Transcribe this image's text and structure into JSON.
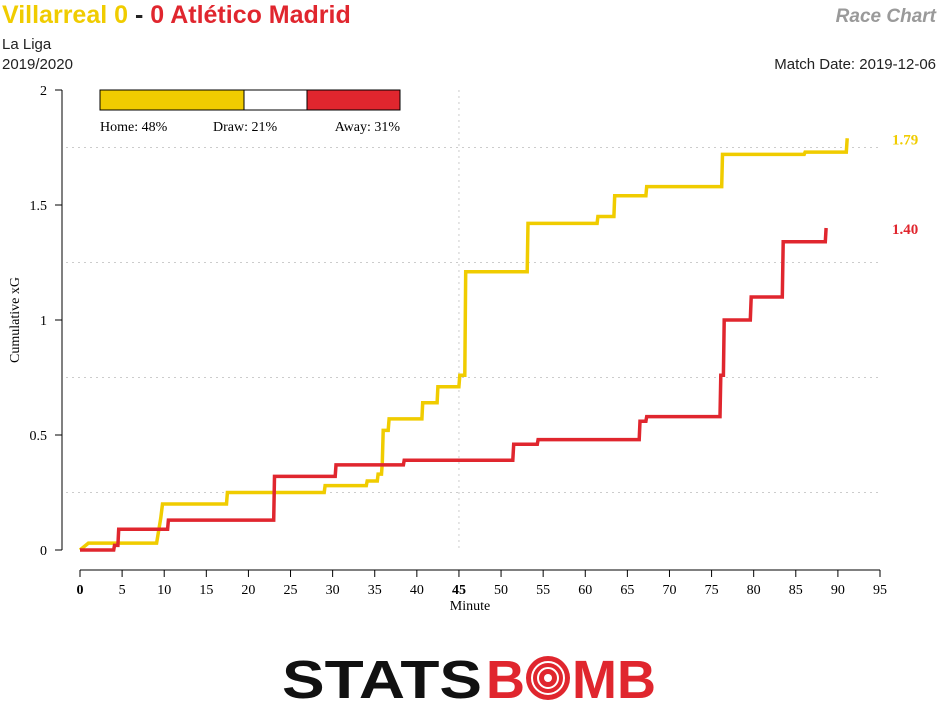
{
  "header": {
    "home_team_score": "Villarreal 0",
    "separator": "-",
    "away_team_score": "0 Atlético Madrid",
    "chart_name": "Race Chart",
    "competition": "La Liga",
    "season": "2019/2020",
    "match_date": "Match Date: 2019-12-06"
  },
  "colors": {
    "home": "#f0cc00",
    "away": "#e0262e",
    "draw": "#ffffff",
    "axis": "#000000",
    "grid": "#cccccc"
  },
  "probabilities": {
    "home": 48,
    "draw": 21,
    "away": 31,
    "home_label": "Home: 48%",
    "draw_label": "Draw: 21%",
    "away_label": "Away: 31%"
  },
  "chart_data": {
    "type": "line",
    "title": "",
    "xlabel": "Minute",
    "ylabel": "Cumulative xG",
    "xlim": [
      0,
      95
    ],
    "ylim": [
      0,
      2
    ],
    "x_ticks": [
      0,
      5,
      10,
      15,
      20,
      25,
      30,
      35,
      40,
      45,
      50,
      55,
      60,
      65,
      70,
      75,
      80,
      85,
      90,
      95
    ],
    "x_tick_labels": [
      "0",
      "5",
      "10",
      "15",
      "20",
      "25",
      "30",
      "35",
      "40",
      "45",
      "50",
      "55",
      "60",
      "65",
      "70",
      "75",
      "80",
      "85",
      "90",
      "95"
    ],
    "y_ticks": [
      0,
      0.5,
      1,
      1.5,
      2
    ],
    "y_tick_labels": [
      "0",
      "0.5",
      "1",
      "1.5",
      "2"
    ],
    "grid": true,
    "halftime_minute": 45,
    "series": [
      {
        "team": "home",
        "end_label": "1.79",
        "points": [
          [
            0,
            0
          ],
          [
            1,
            0.03
          ],
          [
            9.1,
            0.03
          ],
          [
            9.6,
            0.14
          ],
          [
            9.8,
            0.2
          ],
          [
            17.4,
            0.2
          ],
          [
            17.5,
            0.25
          ],
          [
            29,
            0.25
          ],
          [
            29.1,
            0.28
          ],
          [
            34,
            0.28
          ],
          [
            34.1,
            0.3
          ],
          [
            35.3,
            0.3
          ],
          [
            35.4,
            0.33
          ],
          [
            35.8,
            0.33
          ],
          [
            35.9,
            0.38
          ],
          [
            36,
            0.52
          ],
          [
            36.6,
            0.52
          ],
          [
            36.7,
            0.57
          ],
          [
            40.6,
            0.57
          ],
          [
            40.7,
            0.64
          ],
          [
            42.4,
            0.64
          ],
          [
            42.5,
            0.71
          ],
          [
            45,
            0.71
          ],
          [
            45.1,
            0.76
          ],
          [
            45.7,
            0.76
          ],
          [
            45.8,
            1.21
          ],
          [
            53.1,
            1.21
          ],
          [
            53.2,
            1.42
          ],
          [
            61.4,
            1.42
          ],
          [
            61.5,
            1.45
          ],
          [
            63.4,
            1.45
          ],
          [
            63.5,
            1.54
          ],
          [
            67.2,
            1.54
          ],
          [
            67.3,
            1.58
          ],
          [
            76.2,
            1.58
          ],
          [
            76.3,
            1.72
          ],
          [
            86,
            1.72
          ],
          [
            86.1,
            1.73
          ],
          [
            91,
            1.73
          ],
          [
            91.1,
            1.79
          ]
        ]
      },
      {
        "team": "away",
        "end_label": "1.40",
        "points": [
          [
            0,
            0
          ],
          [
            4,
            0
          ],
          [
            4.1,
            0.02
          ],
          [
            4.5,
            0.02
          ],
          [
            4.6,
            0.09
          ],
          [
            10.4,
            0.09
          ],
          [
            10.5,
            0.13
          ],
          [
            23,
            0.13
          ],
          [
            23.1,
            0.32
          ],
          [
            30.3,
            0.32
          ],
          [
            30.4,
            0.37
          ],
          [
            38.4,
            0.37
          ],
          [
            38.5,
            0.39
          ],
          [
            51.4,
            0.39
          ],
          [
            51.5,
            0.46
          ],
          [
            54.3,
            0.46
          ],
          [
            54.4,
            0.48
          ],
          [
            66.4,
            0.48
          ],
          [
            66.5,
            0.56
          ],
          [
            67.2,
            0.56
          ],
          [
            67.3,
            0.58
          ],
          [
            76,
            0.58
          ],
          [
            76.1,
            0.76
          ],
          [
            76.4,
            0.76
          ],
          [
            76.5,
            1
          ],
          [
            79.6,
            1
          ],
          [
            79.7,
            1.1
          ],
          [
            83.4,
            1.1
          ],
          [
            83.5,
            1.34
          ],
          [
            88.5,
            1.34
          ],
          [
            88.6,
            1.4
          ]
        ]
      }
    ]
  },
  "logo": {
    "text_left": "STATS",
    "text_right": "BMB",
    "ring_letter": "O"
  }
}
